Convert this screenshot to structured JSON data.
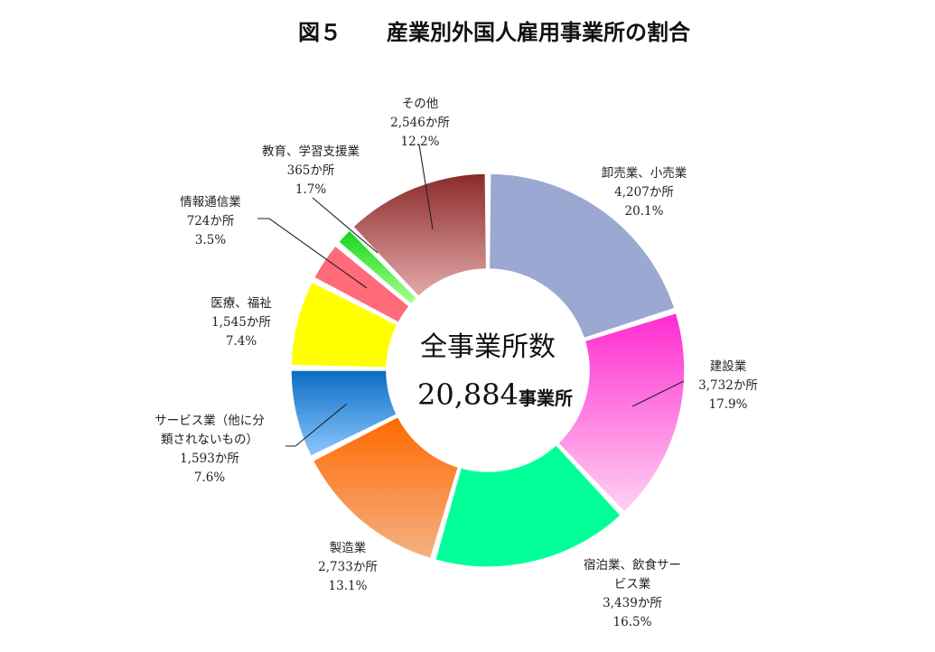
{
  "chart_data": {
    "type": "pie",
    "title_prefix": "図５",
    "title": "産業別外国人雇用事業所の割合",
    "center": {
      "label": "全事業所数",
      "value": "20,884",
      "unit": "事業所"
    },
    "slices": [
      {
        "label": "卸売業、小売業",
        "label_lines": [
          "卸売業、小売業"
        ],
        "count": "4,207か所",
        "percent": "20.1%",
        "value": 20.1,
        "color_top": "#9aa8d2",
        "color_bottom": "#9aa8d2"
      },
      {
        "label": "建設業",
        "label_lines": [
          "建設業"
        ],
        "count": "3,732か所",
        "percent": "17.9%",
        "value": 17.9,
        "color_top": "#ff2bd0",
        "color_bottom": "#ffd2f2"
      },
      {
        "label": "宿泊業、飲食サービス業",
        "label_lines": [
          "宿泊業、飲食サー",
          "ビス業"
        ],
        "count": "3,439か所",
        "percent": "16.5%",
        "value": 16.5,
        "color_top": "#00ff99",
        "color_bottom": "#00ff99"
      },
      {
        "label": "製造業",
        "label_lines": [
          "製造業"
        ],
        "count": "2,733か所",
        "percent": "13.1%",
        "value": 13.1,
        "color_top": "#ff6a00",
        "color_bottom": "#f4b184"
      },
      {
        "label": "サービス業（他に分類されないもの）",
        "label_lines": [
          "サービス業（他に分",
          "類されないもの）"
        ],
        "count": "1,593か所",
        "percent": "7.6%",
        "value": 7.6,
        "color_top": "#0b6cc2",
        "color_bottom": "#8cc8ff"
      },
      {
        "label": "医療、福祉",
        "label_lines": [
          "医療、福祉"
        ],
        "count": "1,545か所",
        "percent": "7.4%",
        "value": 7.4,
        "color_top": "#ffff00",
        "color_bottom": "#ffff00"
      },
      {
        "label": "情報通信業",
        "label_lines": [
          "情報通信業"
        ],
        "count": "724か所",
        "percent": "3.5%",
        "value": 3.5,
        "color_top": "#ff6b78",
        "color_bottom": "#ff6b78"
      },
      {
        "label": "教育、学習支援業",
        "label_lines": [
          "教育、学習支援業"
        ],
        "count": "365か所",
        "percent": "1.7%",
        "value": 1.7,
        "color_top": "#12d61a",
        "color_bottom": "#a8ff90"
      },
      {
        "label": "その他",
        "label_lines": [
          "その他"
        ],
        "count": "2,546か所",
        "percent": "12.2%",
        "value": 12.2,
        "color_top": "#8a2a2a",
        "color_bottom": "#e3a9a9"
      }
    ]
  }
}
